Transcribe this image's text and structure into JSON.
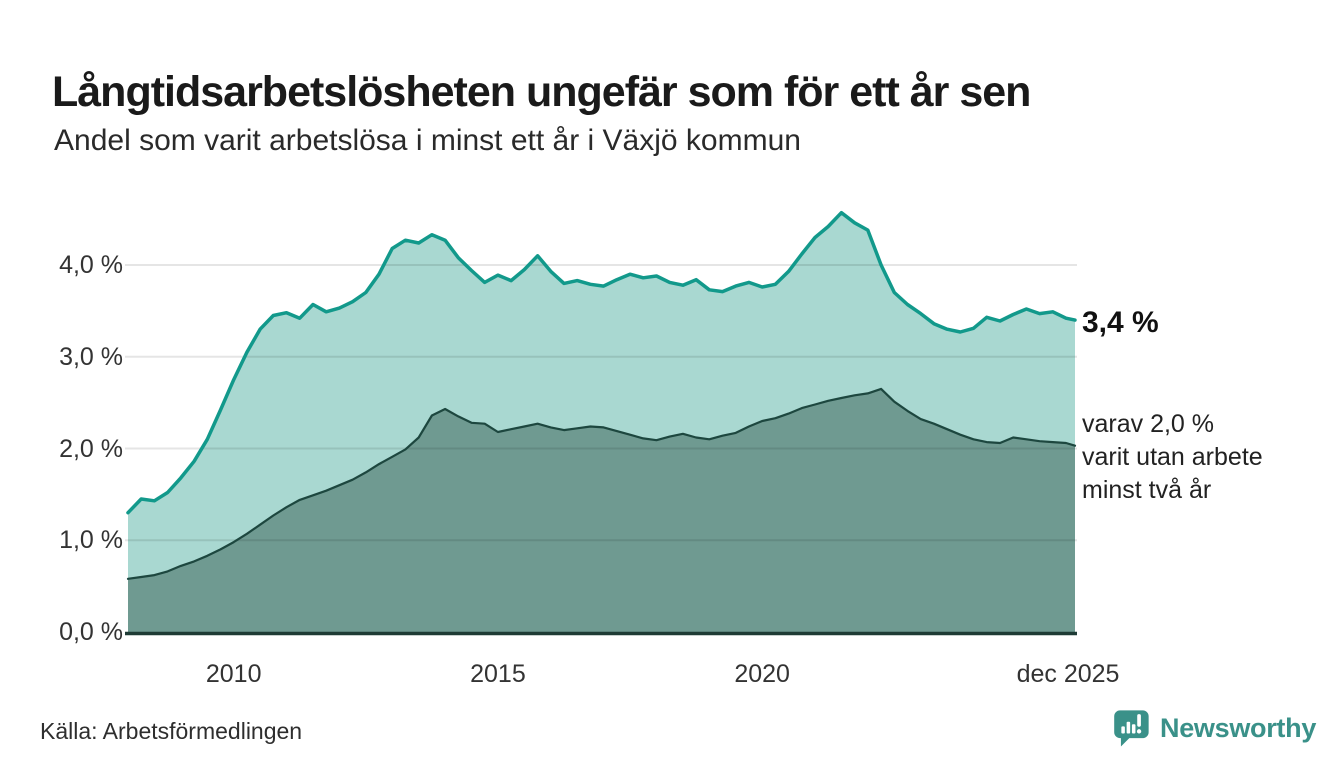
{
  "header": {
    "title": "Långtidsarbetslösheten ungefär som för ett år sen",
    "subtitle": "Andel som varit arbetslösa i minst ett år i Växjö kommun"
  },
  "annotations": {
    "latest_value": "3,4 %",
    "secondary_lines": [
      "varav 2,0 %",
      "varit utan arbete",
      "minst två år"
    ]
  },
  "footer": {
    "source": "Källa: Arbetsförmedlingen",
    "brand": "Newsworthy"
  },
  "colors": {
    "series1_line": "#12998b",
    "series1_fill": "#a9d8d1",
    "series2_line": "#1d473f",
    "series2_fill": "#6f9a91",
    "gridline": "rgba(0,0,0,0.10)",
    "baseline": "#1e3b35",
    "brand_teal": "#3a9189",
    "text_dark": "#1a1a1a",
    "text_tick": "#333333"
  },
  "chart_data": {
    "type": "area",
    "title": "Långtidsarbetslösheten ungefär som för ett år sen",
    "subtitle": "Andel som varit arbetslösa i minst ett år i Växjö kommun",
    "unit": "%",
    "grid": "horizontal only",
    "legend": "none (direct line annotations at right)",
    "xlim": [
      2008,
      2025.92
    ],
    "ylim": [
      0,
      4.6
    ],
    "y_ticks": [
      {
        "label": "0,0 %",
        "value": 0
      },
      {
        "label": "1,0 %",
        "value": 1
      },
      {
        "label": "2,0 %",
        "value": 2
      },
      {
        "label": "3,0 %",
        "value": 3
      },
      {
        "label": "4,0 %",
        "value": 4
      }
    ],
    "x_ticks": [
      {
        "label": "2010",
        "year": 2010
      },
      {
        "label": "2015",
        "year": 2015
      },
      {
        "label": "2020",
        "year": 2020
      },
      {
        "label": "dec 2025",
        "year": 2025.92
      }
    ],
    "x": [
      2008,
      2008.25,
      2008.5,
      2008.75,
      2009,
      2009.25,
      2009.5,
      2009.75,
      2010,
      2010.25,
      2010.5,
      2010.75,
      2011,
      2011.25,
      2011.5,
      2011.75,
      2012,
      2012.25,
      2012.5,
      2012.75,
      2013,
      2013.25,
      2013.5,
      2013.75,
      2014,
      2014.25,
      2014.5,
      2014.75,
      2015,
      2015.25,
      2015.5,
      2015.75,
      2016,
      2016.25,
      2016.5,
      2016.75,
      2017,
      2017.25,
      2017.5,
      2017.75,
      2018,
      2018.25,
      2018.5,
      2018.75,
      2019,
      2019.25,
      2019.5,
      2019.75,
      2020,
      2020.25,
      2020.5,
      2020.75,
      2021,
      2021.25,
      2021.5,
      2021.75,
      2022,
      2022.25,
      2022.5,
      2022.75,
      2023,
      2023.25,
      2023.5,
      2023.75,
      2024,
      2024.25,
      2024.5,
      2024.75,
      2025,
      2025.25,
      2025.5,
      2025.75,
      2025.92
    ],
    "series": [
      {
        "name": "Andel arbetslösa minst ett år",
        "end_label": "3,4 %",
        "line_color": "#12998b",
        "fill_color": "#a9d8d1",
        "values": [
          1.3,
          1.45,
          1.43,
          1.52,
          1.68,
          1.86,
          2.1,
          2.42,
          2.75,
          3.05,
          3.3,
          3.45,
          3.48,
          3.42,
          3.57,
          3.49,
          3.53,
          3.6,
          3.7,
          3.9,
          4.18,
          4.27,
          4.24,
          4.33,
          4.27,
          4.08,
          3.94,
          3.81,
          3.89,
          3.83,
          3.95,
          4.1,
          3.93,
          3.8,
          3.83,
          3.79,
          3.77,
          3.84,
          3.9,
          3.86,
          3.88,
          3.81,
          3.78,
          3.84,
          3.73,
          3.71,
          3.77,
          3.81,
          3.76,
          3.79,
          3.93,
          4.12,
          4.3,
          4.42,
          4.57,
          4.46,
          4.38,
          4.0,
          3.7,
          3.57,
          3.47,
          3.36,
          3.3,
          3.27,
          3.31,
          3.43,
          3.39,
          3.46,
          3.52,
          3.47,
          3.49,
          3.42,
          3.4
        ]
      },
      {
        "name": "varav utan arbete minst två år",
        "end_label": "varav 2,0 % varit utan arbete minst två år",
        "line_color": "#1d473f",
        "fill_color": "#6f9a91",
        "values": [
          0.58,
          0.6,
          0.62,
          0.66,
          0.72,
          0.77,
          0.83,
          0.9,
          0.98,
          1.07,
          1.17,
          1.27,
          1.36,
          1.44,
          1.49,
          1.54,
          1.6,
          1.66,
          1.74,
          1.83,
          1.91,
          1.99,
          2.12,
          2.36,
          2.43,
          2.35,
          2.28,
          2.27,
          2.18,
          2.21,
          2.24,
          2.27,
          2.23,
          2.2,
          2.22,
          2.24,
          2.23,
          2.19,
          2.15,
          2.11,
          2.09,
          2.13,
          2.16,
          2.12,
          2.1,
          2.14,
          2.17,
          2.24,
          2.3,
          2.33,
          2.38,
          2.44,
          2.48,
          2.52,
          2.55,
          2.58,
          2.6,
          2.65,
          2.51,
          2.41,
          2.32,
          2.27,
          2.21,
          2.15,
          2.1,
          2.07,
          2.06,
          2.12,
          2.1,
          2.08,
          2.07,
          2.06,
          2.03
        ]
      }
    ]
  }
}
